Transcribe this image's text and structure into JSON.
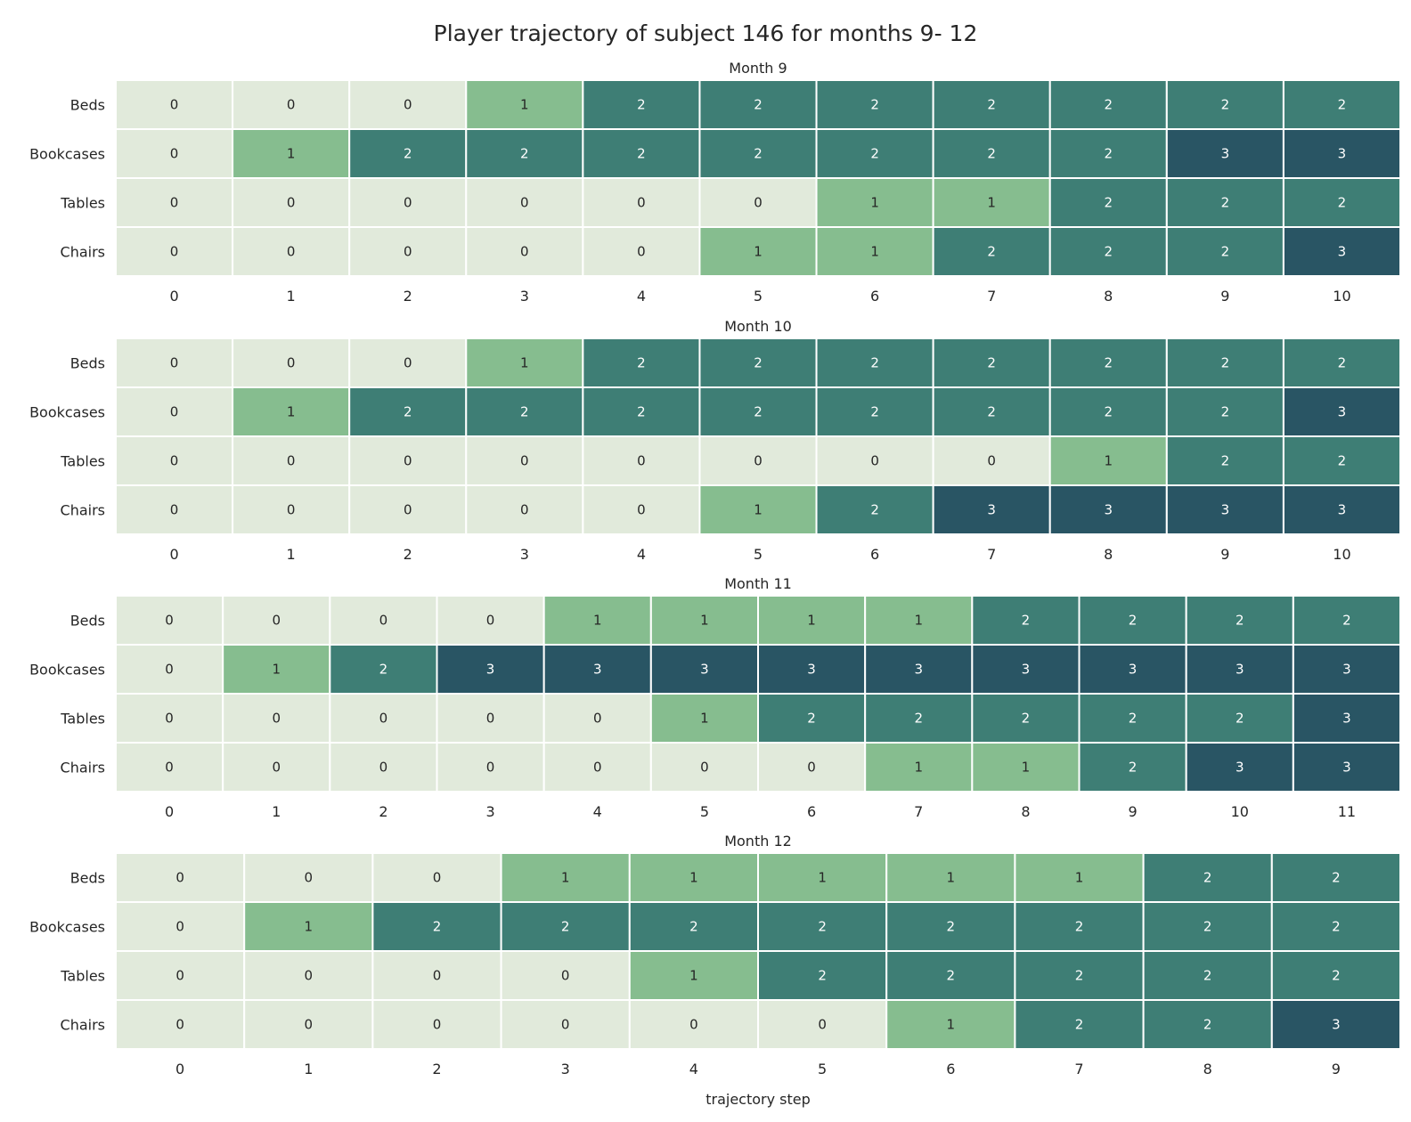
{
  "colors": {
    "0": "#e1eadb",
    "1": "#86bd8f",
    "2": "#3e7e75",
    "3": "#295564",
    "grid": "#ffffff",
    "text_dark": "#262626",
    "text_light": "#ffffff"
  },
  "chart_data": {
    "type": "heatmap",
    "title": "Player trajectory of subject 146 for months 9- 12",
    "xlabel": "trajectory step",
    "rows": [
      "Beds",
      "Bookcases",
      "Tables",
      "Chairs"
    ],
    "panels": [
      {
        "title": "Month 9",
        "x": [
          0,
          1,
          2,
          3,
          4,
          5,
          6,
          7,
          8,
          9,
          10
        ],
        "values": [
          [
            0,
            0,
            0,
            1,
            2,
            2,
            2,
            2,
            2,
            2,
            2
          ],
          [
            0,
            1,
            2,
            2,
            2,
            2,
            2,
            2,
            2,
            3,
            3
          ],
          [
            0,
            0,
            0,
            0,
            0,
            0,
            1,
            1,
            2,
            2,
            2
          ],
          [
            0,
            0,
            0,
            0,
            0,
            1,
            1,
            2,
            2,
            2,
            3
          ]
        ]
      },
      {
        "title": "Month 10",
        "x": [
          0,
          1,
          2,
          3,
          4,
          5,
          6,
          7,
          8,
          9,
          10
        ],
        "values": [
          [
            0,
            0,
            0,
            1,
            2,
            2,
            2,
            2,
            2,
            2,
            2
          ],
          [
            0,
            1,
            2,
            2,
            2,
            2,
            2,
            2,
            2,
            2,
            3
          ],
          [
            0,
            0,
            0,
            0,
            0,
            0,
            0,
            0,
            1,
            2,
            2
          ],
          [
            0,
            0,
            0,
            0,
            0,
            1,
            2,
            3,
            3,
            3,
            3
          ]
        ]
      },
      {
        "title": "Month 11",
        "x": [
          0,
          1,
          2,
          3,
          4,
          5,
          6,
          7,
          8,
          9,
          10,
          11
        ],
        "values": [
          [
            0,
            0,
            0,
            0,
            1,
            1,
            1,
            1,
            2,
            2,
            2,
            2
          ],
          [
            0,
            1,
            2,
            3,
            3,
            3,
            3,
            3,
            3,
            3,
            3,
            3
          ],
          [
            0,
            0,
            0,
            0,
            0,
            1,
            2,
            2,
            2,
            2,
            2,
            3
          ],
          [
            0,
            0,
            0,
            0,
            0,
            0,
            0,
            1,
            1,
            2,
            3,
            3
          ]
        ]
      },
      {
        "title": "Month 12",
        "x": [
          0,
          1,
          2,
          3,
          4,
          5,
          6,
          7,
          8,
          9
        ],
        "values": [
          [
            0,
            0,
            0,
            1,
            1,
            1,
            1,
            1,
            2,
            2
          ],
          [
            0,
            1,
            2,
            2,
            2,
            2,
            2,
            2,
            2,
            2
          ],
          [
            0,
            0,
            0,
            0,
            1,
            2,
            2,
            2,
            2,
            2
          ],
          [
            0,
            0,
            0,
            0,
            0,
            0,
            1,
            2,
            2,
            3
          ]
        ]
      }
    ]
  }
}
